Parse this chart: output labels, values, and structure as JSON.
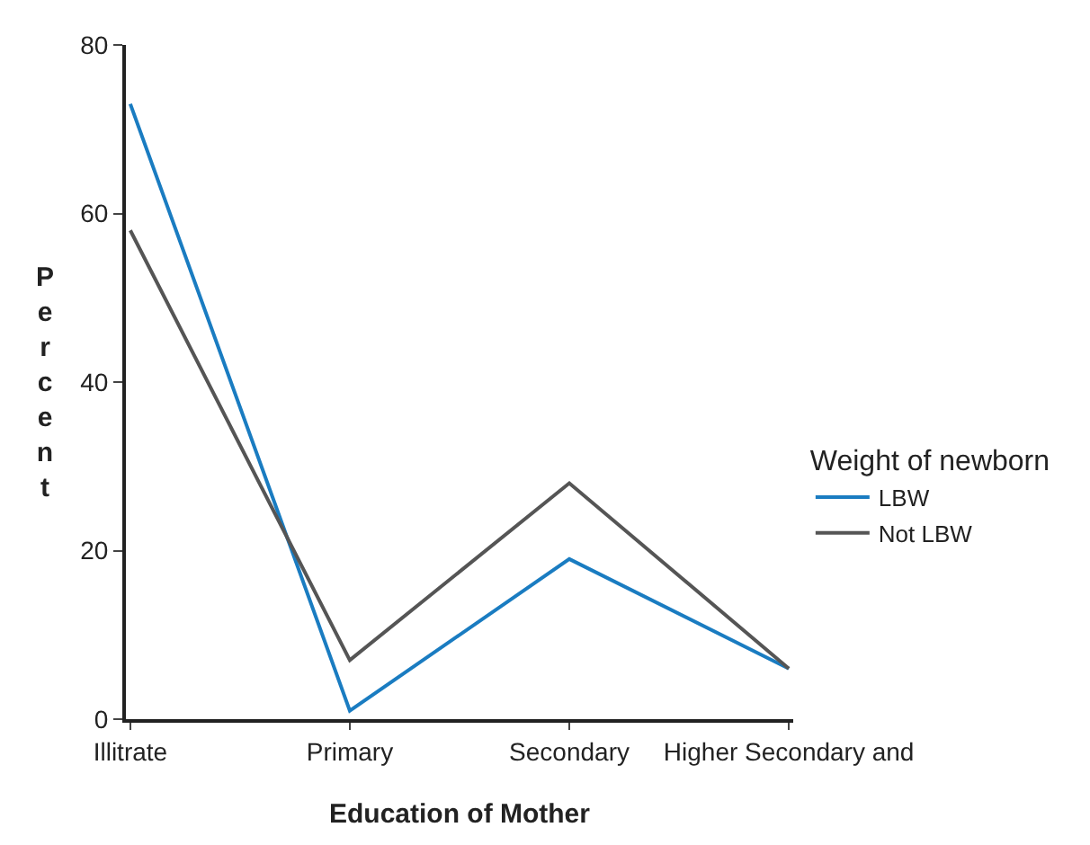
{
  "chart_data": {
    "type": "line",
    "xlabel": "Education of Mother",
    "ylabel": "Percent",
    "legend_title": "Weight of newborn",
    "categories": [
      "Illitrate",
      "Primary",
      "Secondary",
      "Higher Secondary and"
    ],
    "series": [
      {
        "name": "LBW",
        "color": "#1a7cc1",
        "values": [
          73,
          1,
          19,
          6
        ]
      },
      {
        "name": "Not LBW",
        "color": "#555555",
        "values": [
          58,
          7,
          28,
          6
        ]
      }
    ],
    "ylim": [
      0,
      80
    ],
    "yticks": [
      0,
      20,
      40,
      60,
      80
    ],
    "grid": false,
    "legend": "right",
    "marker": "none",
    "line_style": "solid"
  }
}
